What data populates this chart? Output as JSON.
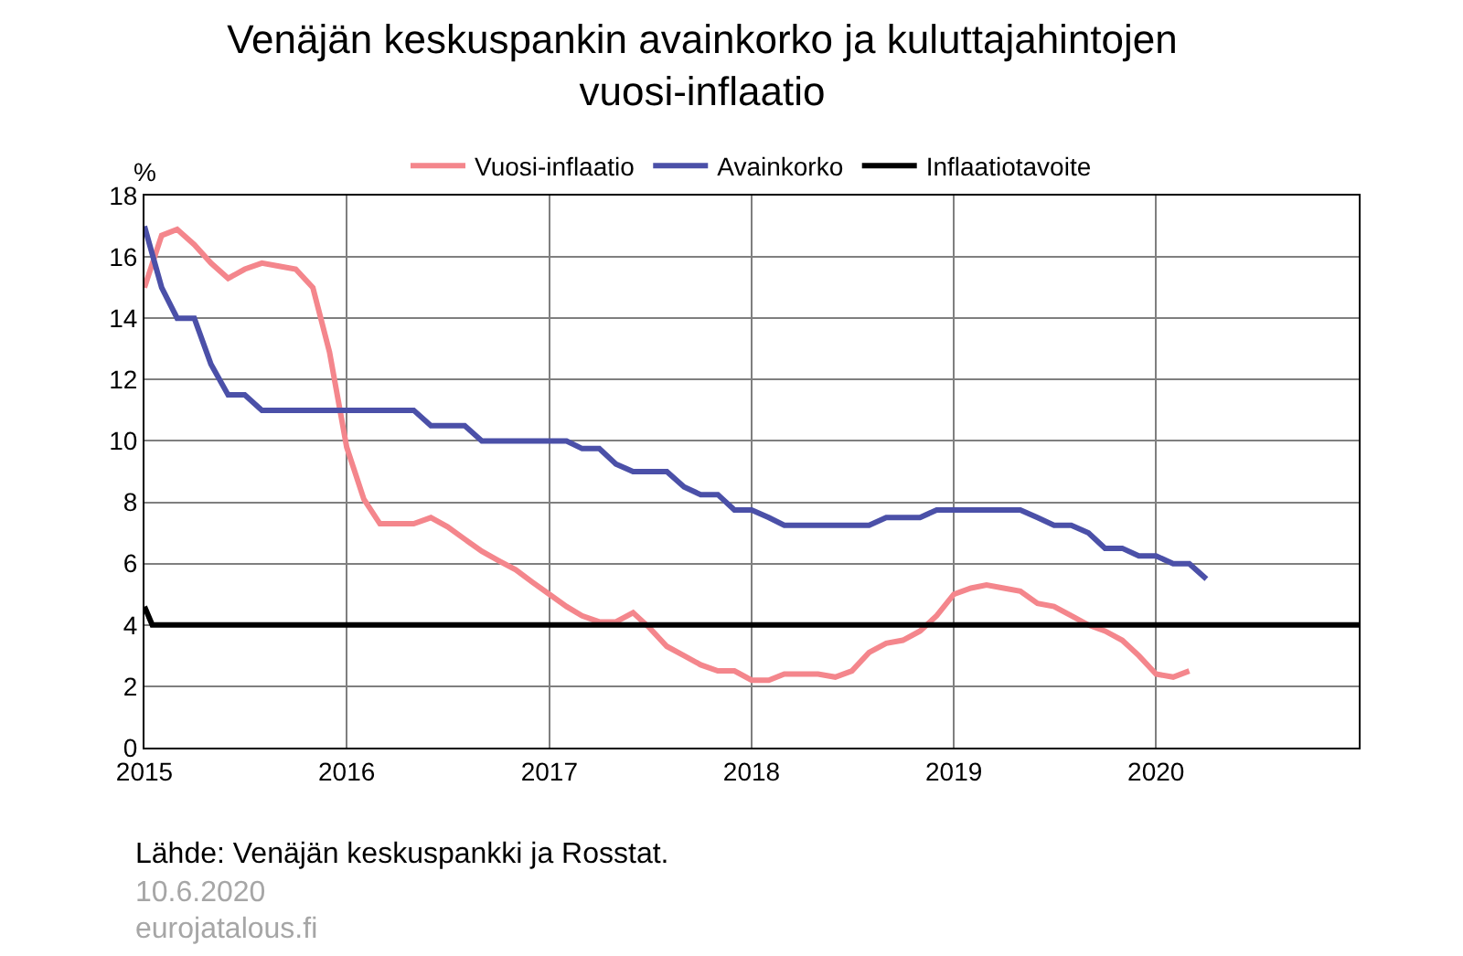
{
  "chart_data": {
    "type": "line",
    "title": "Venäjän keskuspankin avainkorko ja kuluttajahintojen vuosi-inflaatio",
    "ylabel": "%",
    "x": [
      "2015-01",
      "2015-02",
      "2015-03",
      "2015-04",
      "2015-05",
      "2015-06",
      "2015-07",
      "2015-08",
      "2015-09",
      "2015-10",
      "2015-11",
      "2015-12",
      "2016-01",
      "2016-02",
      "2016-03",
      "2016-04",
      "2016-05",
      "2016-06",
      "2016-07",
      "2016-08",
      "2016-09",
      "2016-10",
      "2016-11",
      "2016-12",
      "2017-01",
      "2017-02",
      "2017-03",
      "2017-04",
      "2017-05",
      "2017-06",
      "2017-07",
      "2017-08",
      "2017-09",
      "2017-10",
      "2017-11",
      "2017-12",
      "2018-01",
      "2018-02",
      "2018-03",
      "2018-04",
      "2018-05",
      "2018-06",
      "2018-07",
      "2018-08",
      "2018-09",
      "2018-10",
      "2018-11",
      "2018-12",
      "2019-01",
      "2019-02",
      "2019-03",
      "2019-04",
      "2019-05",
      "2019-06",
      "2019-07",
      "2019-08",
      "2019-09",
      "2019-10",
      "2019-11",
      "2019-12",
      "2020-01",
      "2020-02",
      "2020-03",
      "2020-04"
    ],
    "series": [
      {
        "name": "Vuosi-inflaatio",
        "color": "#f4868c",
        "values": [
          15.0,
          16.7,
          16.9,
          16.4,
          15.8,
          15.3,
          15.6,
          15.8,
          15.7,
          15.6,
          15.0,
          12.9,
          9.8,
          8.1,
          7.3,
          7.3,
          7.3,
          7.5,
          7.2,
          6.8,
          6.4,
          6.1,
          5.8,
          5.4,
          5.0,
          4.6,
          4.3,
          4.1,
          4.1,
          4.4,
          3.9,
          3.3,
          3.0,
          2.7,
          2.5,
          2.5,
          2.2,
          2.2,
          2.4,
          2.4,
          2.4,
          2.3,
          2.5,
          3.1,
          3.4,
          3.5,
          3.8,
          4.3,
          5.0,
          5.2,
          5.3,
          5.2,
          5.1,
          4.7,
          4.6,
          4.3,
          4.0,
          3.8,
          3.5,
          3.0,
          2.4,
          2.3,
          2.5,
          null
        ]
      },
      {
        "name": "Avainkorko",
        "color": "#4b50a8",
        "values": [
          17,
          15,
          14,
          14,
          12.5,
          11.5,
          11.5,
          11,
          11,
          11,
          11,
          11,
          11,
          11,
          11,
          11,
          11,
          10.5,
          10.5,
          10.5,
          10,
          10,
          10,
          10,
          10,
          10,
          9.75,
          9.75,
          9.25,
          9,
          9,
          9,
          8.5,
          8.25,
          8.25,
          7.75,
          7.75,
          7.5,
          7.25,
          7.25,
          7.25,
          7.25,
          7.25,
          7.25,
          7.5,
          7.5,
          7.5,
          7.75,
          7.75,
          7.75,
          7.75,
          7.75,
          7.75,
          7.5,
          7.25,
          7.25,
          7,
          6.5,
          6.5,
          6.25,
          6.25,
          6,
          6,
          5.5
        ]
      },
      {
        "name": "Inflaatiotavoite",
        "color": "#000000",
        "x": [
          "2015-01-01",
          "2015-01-15",
          "2021-01-01"
        ],
        "values": [
          4.6,
          4,
          4
        ]
      }
    ],
    "xlim": [
      "2015-01-01",
      "2021-01-01"
    ],
    "xticks": [
      "2015",
      "2016",
      "2017",
      "2018",
      "2019",
      "2020"
    ],
    "ylim": [
      0,
      18
    ],
    "yticks": [
      0,
      2,
      4,
      6,
      8,
      10,
      12,
      14,
      16,
      18
    ],
    "grid": true,
    "legend": "top",
    "annotations": [
      "Lähde: Venäjän keskuspankki ja Rosstat.",
      "10.6.2020",
      "eurojatalous.fi"
    ]
  }
}
